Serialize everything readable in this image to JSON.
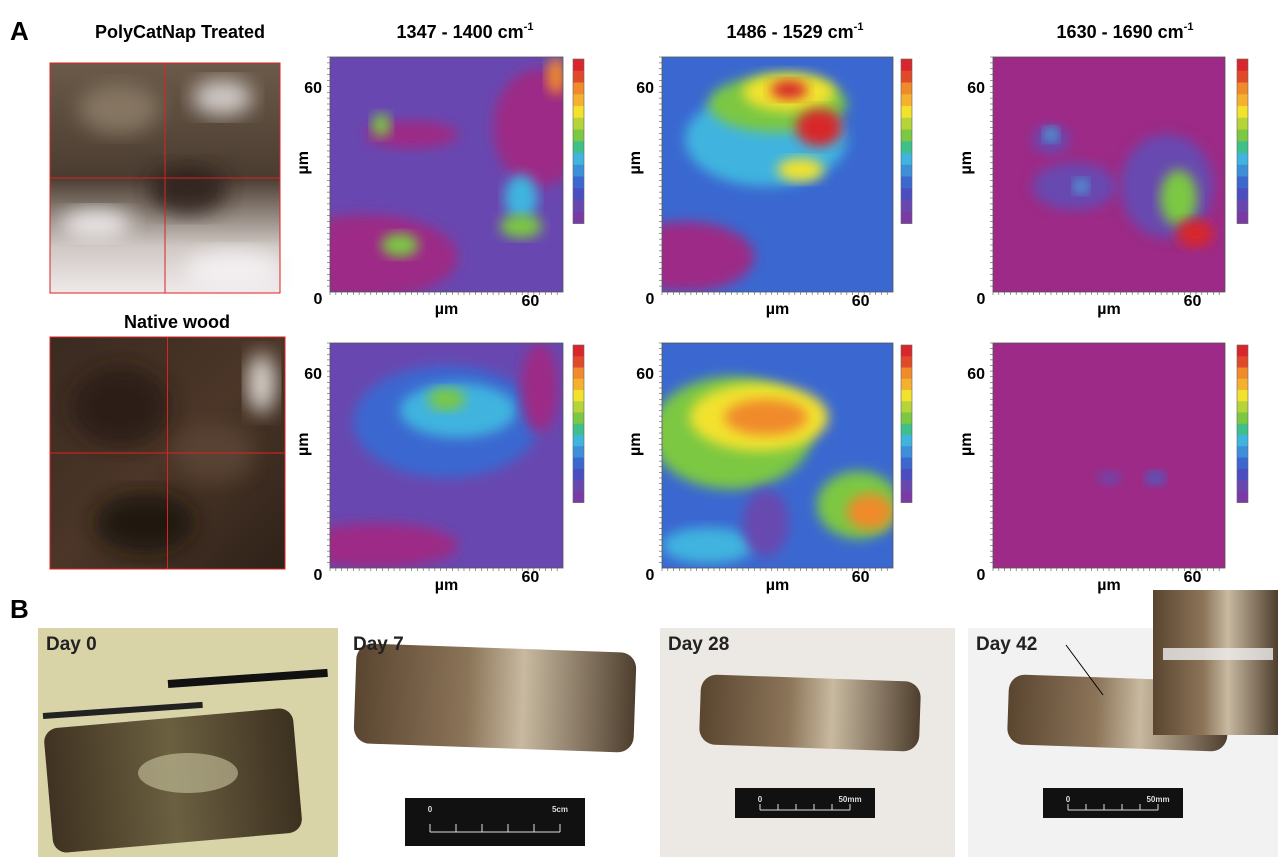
{
  "panel_a": {
    "label": "A",
    "row_titles": [
      "PolyCatNap Treated",
      "Native wood"
    ],
    "columns": [
      {
        "title": "1347 - 1400 cm",
        "superscript": "-1"
      },
      {
        "title": "1486 - 1529 cm",
        "superscript": "-1"
      },
      {
        "title": "1630 - 1690 cm",
        "superscript": "-1"
      }
    ],
    "axis": {
      "y_tick": "60",
      "origin": "0",
      "unit": "µm",
      "x_tick": "60"
    }
  },
  "panel_b": {
    "label": "B",
    "photos": [
      {
        "label": "Day 0"
      },
      {
        "label": "Day 7",
        "scale": [
          "0",
          "5cm"
        ]
      },
      {
        "label": "Day 28",
        "scale": [
          "0",
          "50mm"
        ]
      },
      {
        "label": "Day 42",
        "scale": [
          "0",
          "50mm"
        ]
      }
    ]
  }
}
